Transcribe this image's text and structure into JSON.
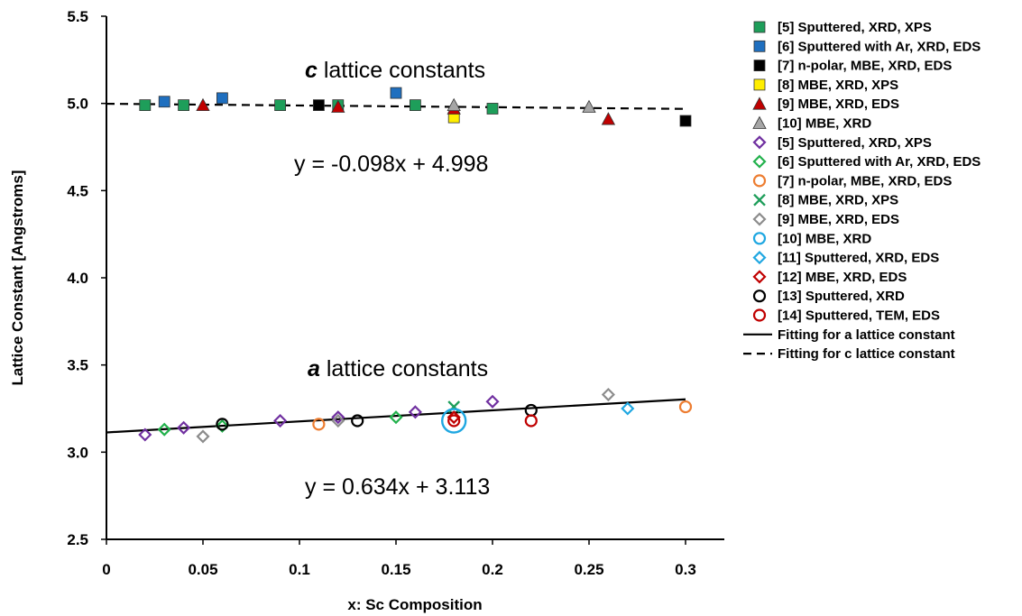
{
  "chart_data": {
    "type": "scatter",
    "xlabel": "x: Sc Composition",
    "ylabel": "Lattice Constant [Angstroms]",
    "xlim": [
      0,
      0.3
    ],
    "ylim": [
      2.5,
      5.5
    ],
    "x_ticks": [
      "0",
      "0.05",
      "0.1",
      "0.15",
      "0.2",
      "0.25",
      "0.3"
    ],
    "y_ticks": [
      "2.5",
      "3.0",
      "3.5",
      "4.0",
      "4.5",
      "5.0",
      "5.5"
    ],
    "grid": false,
    "legend_position": "right",
    "annotations": {
      "c_title_letter": "c",
      "c_title_rest": " lattice constants",
      "c_equation": "y = -0.098x + 4.998",
      "a_title_letter": "a",
      "a_title_rest": " lattice constants",
      "a_equation": "y = 0.634x + 3.113"
    },
    "series": [
      {
        "name": "[5] Sputtered, XRD, XPS",
        "marker": "square",
        "color": "#1e9e5a",
        "x": [
          0.02,
          0.04,
          0.09,
          0.12,
          0.16,
          0.2
        ],
        "y": [
          4.99,
          4.99,
          4.99,
          4.99,
          4.99,
          4.97
        ]
      },
      {
        "name": "[6] Sputtered with Ar, XRD, EDS",
        "marker": "square",
        "color": "#1f6fbf",
        "x": [
          0.03,
          0.06,
          0.15
        ],
        "y": [
          5.01,
          5.03,
          5.06
        ]
      },
      {
        "name": "[7] n-polar, MBE, XRD, EDS",
        "marker": "square",
        "color": "#000000",
        "x": [
          0.11,
          0.3
        ],
        "y": [
          4.99,
          4.9
        ]
      },
      {
        "name": "[8] MBE, XRD, XPS",
        "marker": "square",
        "color": "#ffee00",
        "x": [
          0.18
        ],
        "y": [
          4.92
        ]
      },
      {
        "name": "[9] MBE, XRD, EDS",
        "marker": "triangle",
        "color": "#c00000",
        "x": [
          0.05,
          0.12,
          0.18,
          0.26
        ],
        "y": [
          4.99,
          4.98,
          4.97,
          4.91
        ]
      },
      {
        "name": "[10] MBE, XRD",
        "marker": "triangle",
        "color": "#a6a6a6",
        "x": [
          0.18,
          0.25
        ],
        "y": [
          4.99,
          4.98
        ]
      },
      {
        "name": "[5] Sputtered, XRD, XPS",
        "marker": "diamond",
        "color": "#7030a0",
        "x": [
          0.02,
          0.04,
          0.09,
          0.12,
          0.16,
          0.2
        ],
        "y": [
          3.1,
          3.14,
          3.18,
          3.2,
          3.23,
          3.29
        ]
      },
      {
        "name": "[6] Sputtered with Ar, XRD, EDS",
        "marker": "diamond",
        "color": "#22b14c",
        "x": [
          0.03,
          0.06,
          0.15
        ],
        "y": [
          3.13,
          3.15,
          3.2
        ]
      },
      {
        "name": "[7] n-polar, MBE, XRD, EDS",
        "marker": "circle",
        "color": "#ed7d31",
        "x": [
          0.11,
          0.3
        ],
        "y": [
          3.16,
          3.26
        ]
      },
      {
        "name": "[8] MBE, XRD, XPS",
        "marker": "x",
        "color": "#1e9e5a",
        "x": [
          0.18
        ],
        "y": [
          3.26
        ]
      },
      {
        "name": "[9] MBE, XRD, EDS",
        "marker": "diamond",
        "color": "#8c8c8c",
        "x": [
          0.05,
          0.12,
          0.26
        ],
        "y": [
          3.09,
          3.18,
          3.33
        ]
      },
      {
        "name": "[10] MBE, XRD",
        "marker": "bigcircle",
        "color": "#1fa7e1",
        "x": [
          0.18
        ],
        "y": [
          3.18
        ]
      },
      {
        "name": "[11] Sputtered, XRD, EDS",
        "marker": "diamond",
        "color": "#1fa7e1",
        "x": [
          0.27
        ],
        "y": [
          3.25
        ]
      },
      {
        "name": "[12] MBE, XRD, EDS",
        "marker": "diamond",
        "color": "#c00000",
        "x": [
          0.18
        ],
        "y": [
          3.2
        ]
      },
      {
        "name": "[13] Sputtered, XRD",
        "marker": "circle",
        "color": "#000000",
        "x": [
          0.06,
          0.13,
          0.22
        ],
        "y": [
          3.16,
          3.18,
          3.24
        ]
      },
      {
        "name": "[14] Sputtered, TEM, EDS",
        "marker": "circle",
        "color": "#c00000",
        "x": [
          0.18,
          0.22
        ],
        "y": [
          3.18,
          3.18
        ]
      }
    ],
    "fits": [
      {
        "name": "Fitting for a lattice constant",
        "style": "solid",
        "color": "#000000",
        "slope": 0.634,
        "intercept": 3.113,
        "x_range": [
          0,
          0.3
        ]
      },
      {
        "name": "Fitting for c lattice constant",
        "style": "dashed",
        "color": "#000000",
        "slope": -0.098,
        "intercept": 4.998,
        "x_range": [
          0,
          0.3
        ]
      }
    ]
  }
}
